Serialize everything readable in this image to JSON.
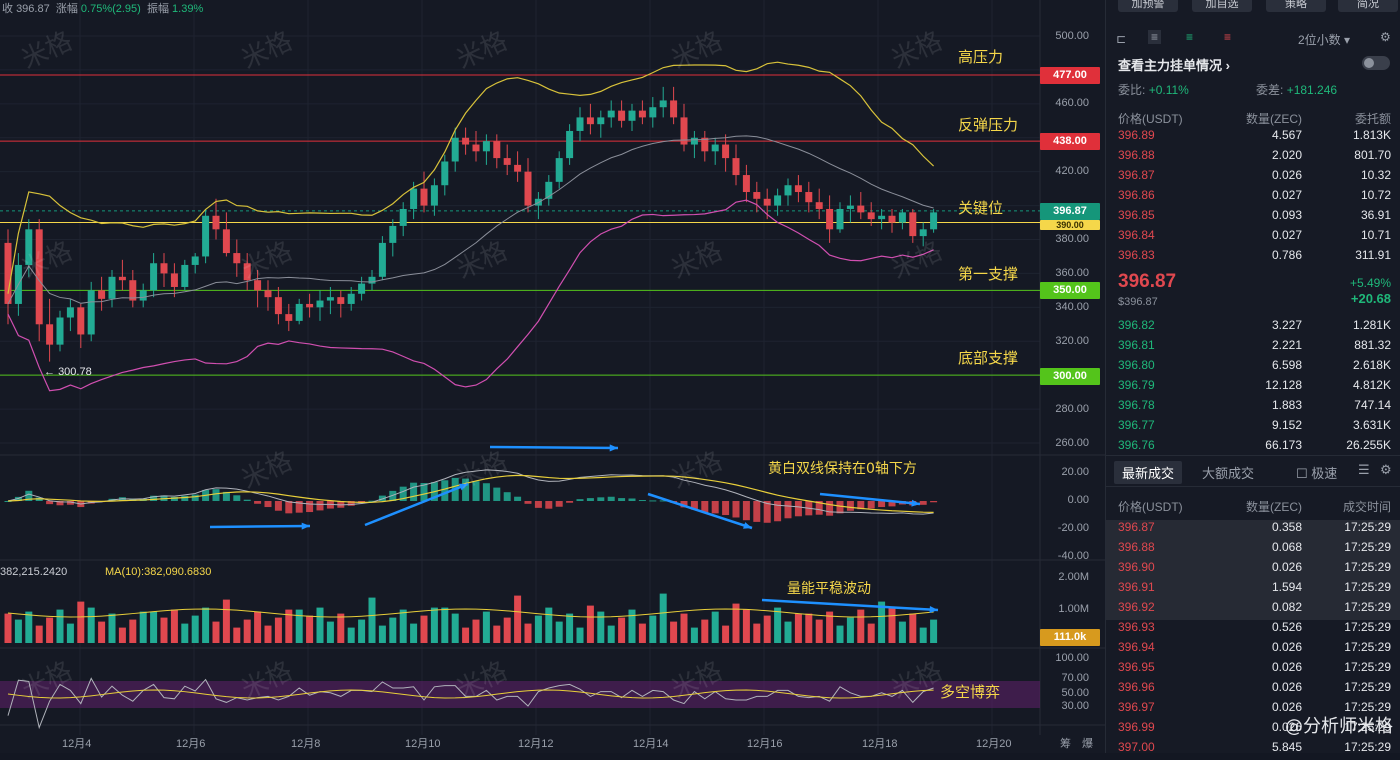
{
  "status_bar": {
    "close_label": "收",
    "close": "396.87",
    "change_label": "涨幅",
    "change": "0.75%(2.95)",
    "amp_label": "振幅",
    "amp": "1.39%"
  },
  "price_axis": [
    "500.00",
    "480.00",
    "460.00",
    "440.00",
    "420.00",
    "400.00",
    "380.00",
    "360.00",
    "340.00",
    "320.00",
    "300.00",
    "280.00",
    "260.00"
  ],
  "levels": [
    {
      "name": "高压力",
      "price": "477.00",
      "color": "#e0303a"
    },
    {
      "name": "反弹压力",
      "price": "438.00",
      "color": "#e0303a"
    },
    {
      "name": "关键位",
      "price": "390.00",
      "color": "#f5d74a"
    },
    {
      "name": "第一支撑",
      "price": "350.00",
      "color": "#54c41b"
    },
    {
      "name": "底部支撑",
      "price": "300.00",
      "color": "#54c41b"
    }
  ],
  "current_price_tag": "396.87",
  "low_marker": "300.78",
  "macd": {
    "annotation": "黄白双线保持在0轴下方",
    "axis": [
      "20.00",
      "0.00",
      "-20.00",
      "-40.00"
    ]
  },
  "volume": {
    "ma5_label": "382,215.2420",
    "ma10_label": "MA(10):382,090.6830",
    "annotation": "量能平稳波动",
    "axis": [
      "2.00M",
      "1.00M"
    ],
    "current_tag": "111.0k"
  },
  "rsi": {
    "annotation": "多空博弈",
    "axis": [
      "100.00",
      "70.00",
      "50.00",
      "30.00"
    ]
  },
  "x_axis": [
    "12月4",
    "12月6",
    "12月8",
    "12月10",
    "12月12",
    "12月14",
    "12月16",
    "12月18",
    "12月20"
  ],
  "x_axis_tail": [
    "筹",
    "爆"
  ],
  "watermark_text": "米格",
  "chart_data": {
    "type": "candlestick",
    "ylim": [
      260,
      505
    ],
    "ohlc": [
      [
        378,
        386,
        330,
        342
      ],
      [
        342,
        372,
        335,
        365
      ],
      [
        365,
        392,
        358,
        386
      ],
      [
        386,
        392,
        320,
        330
      ],
      [
        330,
        345,
        308,
        318
      ],
      [
        318,
        338,
        314,
        334
      ],
      [
        334,
        345,
        326,
        340
      ],
      [
        340,
        342,
        316,
        324
      ],
      [
        324,
        355,
        320,
        350
      ],
      [
        350,
        358,
        338,
        345
      ],
      [
        345,
        362,
        340,
        358
      ],
      [
        358,
        368,
        350,
        356
      ],
      [
        356,
        362,
        340,
        344
      ],
      [
        344,
        354,
        340,
        350
      ],
      [
        350,
        372,
        346,
        366
      ],
      [
        366,
        372,
        352,
        360
      ],
      [
        360,
        366,
        346,
        352
      ],
      [
        352,
        368,
        350,
        365
      ],
      [
        365,
        372,
        360,
        370
      ],
      [
        370,
        398,
        366,
        394
      ],
      [
        394,
        404,
        380,
        386
      ],
      [
        386,
        396,
        370,
        372
      ],
      [
        372,
        380,
        358,
        366
      ],
      [
        366,
        372,
        350,
        356
      ],
      [
        356,
        362,
        340,
        350
      ],
      [
        350,
        356,
        338,
        346
      ],
      [
        346,
        352,
        330,
        336
      ],
      [
        336,
        342,
        326,
        332
      ],
      [
        332,
        345,
        330,
        342
      ],
      [
        342,
        348,
        334,
        340
      ],
      [
        340,
        350,
        332,
        344
      ],
      [
        344,
        352,
        336,
        346
      ],
      [
        346,
        350,
        334,
        342
      ],
      [
        342,
        352,
        338,
        348
      ],
      [
        348,
        358,
        344,
        354
      ],
      [
        354,
        362,
        350,
        358
      ],
      [
        358,
        382,
        356,
        378
      ],
      [
        378,
        392,
        370,
        388
      ],
      [
        388,
        402,
        382,
        398
      ],
      [
        398,
        414,
        392,
        410
      ],
      [
        410,
        420,
        396,
        400
      ],
      [
        400,
        416,
        394,
        412
      ],
      [
        412,
        430,
        406,
        426
      ],
      [
        426,
        446,
        420,
        440
      ],
      [
        440,
        446,
        430,
        436
      ],
      [
        436,
        444,
        426,
        432
      ],
      [
        432,
        442,
        424,
        438
      ],
      [
        438,
        442,
        422,
        428
      ],
      [
        428,
        436,
        418,
        424
      ],
      [
        424,
        432,
        414,
        420
      ],
      [
        420,
        428,
        396,
        400
      ],
      [
        400,
        408,
        392,
        404
      ],
      [
        404,
        418,
        400,
        414
      ],
      [
        414,
        432,
        410,
        428
      ],
      [
        428,
        448,
        424,
        444
      ],
      [
        444,
        458,
        438,
        452
      ],
      [
        452,
        460,
        442,
        448
      ],
      [
        448,
        456,
        440,
        452
      ],
      [
        452,
        462,
        446,
        456
      ],
      [
        456,
        462,
        446,
        450
      ],
      [
        450,
        460,
        444,
        456
      ],
      [
        456,
        462,
        448,
        452
      ],
      [
        452,
        464,
        446,
        458
      ],
      [
        458,
        470,
        452,
        462
      ],
      [
        462,
        470,
        448,
        452
      ],
      [
        452,
        460,
        432,
        436
      ],
      [
        436,
        444,
        428,
        440
      ],
      [
        440,
        444,
        426,
        432
      ],
      [
        432,
        440,
        424,
        436
      ],
      [
        436,
        442,
        420,
        428
      ],
      [
        428,
        436,
        412,
        418
      ],
      [
        418,
        424,
        402,
        408
      ],
      [
        408,
        414,
        396,
        404
      ],
      [
        404,
        410,
        392,
        400
      ],
      [
        400,
        410,
        394,
        406
      ],
      [
        406,
        416,
        400,
        412
      ],
      [
        412,
        418,
        402,
        408
      ],
      [
        408,
        414,
        396,
        402
      ],
      [
        402,
        410,
        392,
        398
      ],
      [
        398,
        406,
        378,
        386
      ],
      [
        386,
        402,
        384,
        398
      ],
      [
        398,
        406,
        390,
        400
      ],
      [
        400,
        408,
        392,
        396
      ],
      [
        396,
        402,
        388,
        392
      ],
      [
        392,
        398,
        386,
        394
      ],
      [
        394,
        398,
        384,
        390
      ],
      [
        390,
        398,
        386,
        396
      ],
      [
        396,
        398,
        378,
        382
      ],
      [
        382,
        390,
        376,
        386
      ],
      [
        386,
        398,
        384,
        396
      ]
    ]
  },
  "panel": {
    "top_buttons": [
      "加预警",
      "加自选",
      "策略",
      "简况"
    ],
    "decimals": "2位小数",
    "order_title": "查看主力挂单情况",
    "ratio_label": "委比:",
    "ratio": "+0.11%",
    "diff_label": "委差:",
    "diff": "+181.246",
    "headers": {
      "price": "价格(USDT)",
      "qty": "数量(ZEC)",
      "amount": "委托额"
    },
    "asks": [
      [
        "396.89",
        "4.567",
        "1.813K"
      ],
      [
        "396.88",
        "2.020",
        "801.70"
      ],
      [
        "396.87",
        "0.026",
        "10.32"
      ],
      [
        "396.86",
        "0.027",
        "10.72"
      ],
      [
        "396.85",
        "0.093",
        "36.91"
      ],
      [
        "396.84",
        "0.027",
        "10.71"
      ],
      [
        "396.83",
        "0.786",
        "311.91"
      ]
    ],
    "last_price": "396.87",
    "last_sub": "$396.87",
    "pct": "+5.49%",
    "chg": "+20.68",
    "bids": [
      [
        "396.82",
        "3.227",
        "1.281K"
      ],
      [
        "396.81",
        "2.221",
        "881.32"
      ],
      [
        "396.80",
        "6.598",
        "2.618K"
      ],
      [
        "396.79",
        "12.128",
        "4.812K"
      ],
      [
        "396.78",
        "1.883",
        "747.14"
      ],
      [
        "396.77",
        "9.152",
        "3.631K"
      ],
      [
        "396.76",
        "66.173",
        "26.255K"
      ]
    ],
    "trades_tab": "最新成交",
    "big_tab": "大额成交",
    "fast_label": "极速",
    "trade_headers": {
      "price": "价格(USDT)",
      "qty": "数量(ZEC)",
      "time": "成交时间"
    },
    "trades": [
      [
        "396.87",
        "0.358",
        "17:25:29"
      ],
      [
        "396.88",
        "0.068",
        "17:25:29"
      ],
      [
        "396.90",
        "0.026",
        "17:25:29"
      ],
      [
        "396.91",
        "1.594",
        "17:25:29"
      ],
      [
        "396.92",
        "0.082",
        "17:25:29"
      ],
      [
        "396.93",
        "0.526",
        "17:25:29"
      ],
      [
        "396.94",
        "0.026",
        "17:25:29"
      ],
      [
        "396.95",
        "0.026",
        "17:25:29"
      ],
      [
        "396.96",
        "0.026",
        "17:25:29"
      ],
      [
        "396.97",
        "0.026",
        "17:25:29"
      ],
      [
        "396.99",
        "0.026",
        "17:25:29"
      ],
      [
        "397.00",
        "5.845",
        "17:25:29"
      ]
    ],
    "brand": "@分析师米格"
  }
}
